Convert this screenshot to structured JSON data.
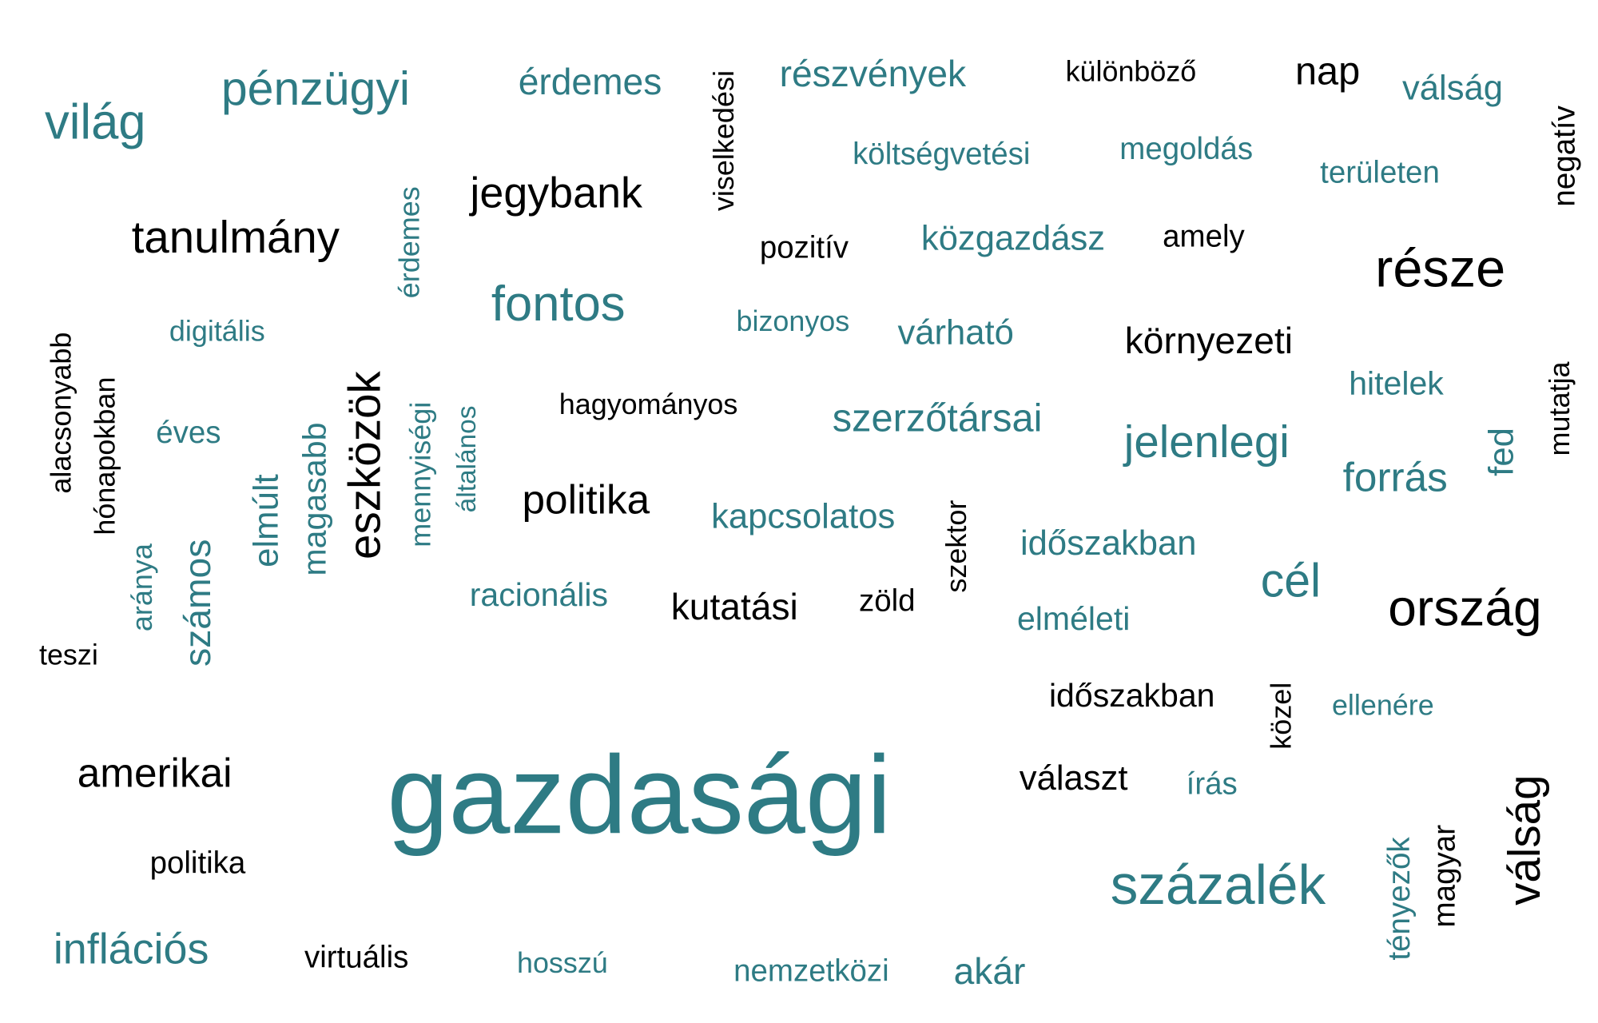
{
  "palette": {
    "accent": "#2e7b84",
    "dark": "#000000",
    "background": "#ffffff"
  },
  "words": [
    {
      "id": "world",
      "text": "világ",
      "color": "accent"
    },
    {
      "id": "financial",
      "text": "pénzügyi",
      "color": "accent"
    },
    {
      "id": "worth1",
      "text": "érdemes",
      "color": "accent"
    },
    {
      "id": "behavioral",
      "text": "viselkedési",
      "color": "dark"
    },
    {
      "id": "shares",
      "text": "részvények",
      "color": "accent"
    },
    {
      "id": "various",
      "text": "különböző",
      "color": "dark"
    },
    {
      "id": "day",
      "text": "nap",
      "color": "dark"
    },
    {
      "id": "crisis1",
      "text": "válság",
      "color": "accent"
    },
    {
      "id": "negative",
      "text": "negatív",
      "color": "dark"
    },
    {
      "id": "budgetary",
      "text": "költségvetési",
      "color": "accent"
    },
    {
      "id": "solution",
      "text": "megoldás",
      "color": "accent"
    },
    {
      "id": "area",
      "text": "területen",
      "color": "accent"
    },
    {
      "id": "centralbank",
      "text": "jegybank",
      "color": "dark"
    },
    {
      "id": "study",
      "text": "tanulmány",
      "color": "dark"
    },
    {
      "id": "worth2",
      "text": "érdemes",
      "color": "accent"
    },
    {
      "id": "positive",
      "text": "pozitív",
      "color": "dark"
    },
    {
      "id": "economist",
      "text": "közgazdász",
      "color": "accent"
    },
    {
      "id": "which",
      "text": "amely",
      "color": "dark"
    },
    {
      "id": "part",
      "text": "része",
      "color": "dark"
    },
    {
      "id": "important",
      "text": "fontos",
      "color": "accent"
    },
    {
      "id": "digital",
      "text": "digitális",
      "color": "accent"
    },
    {
      "id": "certain",
      "text": "bizonyos",
      "color": "accent"
    },
    {
      "id": "expected",
      "text": "várható",
      "color": "accent"
    },
    {
      "id": "environmental",
      "text": "környezeti",
      "color": "dark"
    },
    {
      "id": "lower",
      "text": "alacsonyabb",
      "color": "dark"
    },
    {
      "id": "months",
      "text": "hónapokban",
      "color": "dark"
    },
    {
      "id": "assets",
      "text": "eszközök",
      "color": "dark"
    },
    {
      "id": "quantitative",
      "text": "mennyiségi",
      "color": "accent"
    },
    {
      "id": "general",
      "text": "általános",
      "color": "accent"
    },
    {
      "id": "traditional",
      "text": "hagyományos",
      "color": "dark"
    },
    {
      "id": "coauthors",
      "text": "szerzőtársai",
      "color": "accent"
    },
    {
      "id": "loans",
      "text": "hitelek",
      "color": "accent"
    },
    {
      "id": "shows",
      "text": "mutatja",
      "color": "dark"
    },
    {
      "id": "annual",
      "text": "éves",
      "color": "accent"
    },
    {
      "id": "past",
      "text": "elmúlt",
      "color": "accent"
    },
    {
      "id": "higher",
      "text": "magasabb",
      "color": "accent"
    },
    {
      "id": "current",
      "text": "jelenlegi",
      "color": "accent"
    },
    {
      "id": "source",
      "text": "forrás",
      "color": "accent"
    },
    {
      "id": "fed",
      "text": "fed",
      "color": "accent"
    },
    {
      "id": "politics1",
      "text": "politika",
      "color": "dark"
    },
    {
      "id": "related",
      "text": "kapcsolatos",
      "color": "accent"
    },
    {
      "id": "sector",
      "text": "szektor",
      "color": "dark"
    },
    {
      "id": "period1",
      "text": "időszakban",
      "color": "accent"
    },
    {
      "id": "ratio",
      "text": "aránya",
      "color": "accent"
    },
    {
      "id": "many",
      "text": "számos",
      "color": "accent"
    },
    {
      "id": "rational",
      "text": "racionális",
      "color": "accent"
    },
    {
      "id": "research",
      "text": "kutatási",
      "color": "dark"
    },
    {
      "id": "green",
      "text": "zöld",
      "color": "dark"
    },
    {
      "id": "goal",
      "text": "cél",
      "color": "accent"
    },
    {
      "id": "country",
      "text": "ország",
      "color": "dark"
    },
    {
      "id": "theoretical",
      "text": "elméleti",
      "color": "accent"
    },
    {
      "id": "does",
      "text": "teszi",
      "color": "dark"
    },
    {
      "id": "period2",
      "text": "időszakban",
      "color": "dark"
    },
    {
      "id": "near",
      "text": "közel",
      "color": "dark"
    },
    {
      "id": "despite",
      "text": "ellenére",
      "color": "accent"
    },
    {
      "id": "american",
      "text": "amerikai",
      "color": "dark"
    },
    {
      "id": "economic",
      "text": "gazdasági",
      "color": "accent"
    },
    {
      "id": "choice",
      "text": "választ",
      "color": "dark"
    },
    {
      "id": "writing",
      "text": "írás",
      "color": "accent"
    },
    {
      "id": "crisis2",
      "text": "válság",
      "color": "dark"
    },
    {
      "id": "politics2",
      "text": "politika",
      "color": "dark"
    },
    {
      "id": "percent",
      "text": "százalék",
      "color": "accent"
    },
    {
      "id": "factors",
      "text": "tényezők",
      "color": "accent"
    },
    {
      "id": "hungarian",
      "text": "magyar",
      "color": "dark"
    },
    {
      "id": "inflationary",
      "text": "inflációs",
      "color": "accent"
    },
    {
      "id": "virtual",
      "text": "virtuális",
      "color": "dark"
    },
    {
      "id": "long",
      "text": "hosszú",
      "color": "accent"
    },
    {
      "id": "international",
      "text": "nemzetközi",
      "color": "accent"
    },
    {
      "id": "even",
      "text": "akár",
      "color": "accent"
    }
  ]
}
